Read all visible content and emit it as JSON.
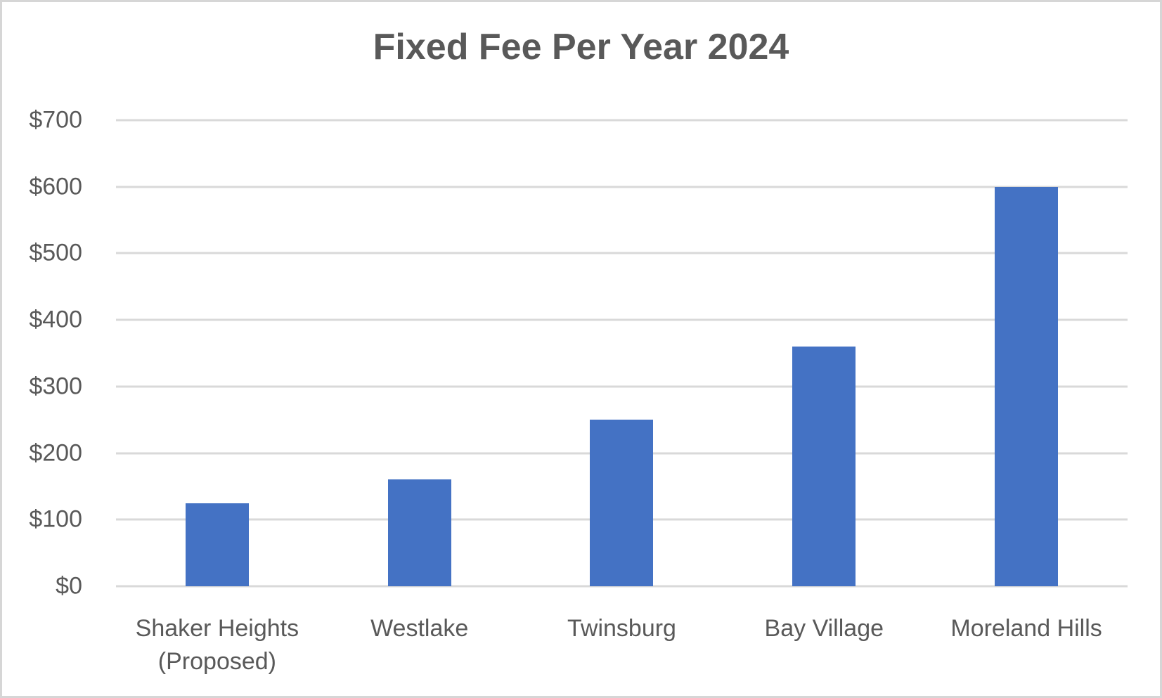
{
  "chart": {
    "title": "Fixed Fee Per Year 2024"
  },
  "chart_data": {
    "type": "bar",
    "title": "Fixed Fee Per Year 2024",
    "categories": [
      "Shaker Heights (Proposed)",
      "Westlake",
      "Twinsburg",
      "Bay Village",
      "Moreland Hills"
    ],
    "values": [
      125,
      160,
      250,
      360,
      600
    ],
    "xlabel": "",
    "ylabel": "",
    "ylim": [
      0,
      700
    ],
    "yticks": [
      {
        "value": 0,
        "label": "$0"
      },
      {
        "value": 100,
        "label": "$100"
      },
      {
        "value": 200,
        "label": "$200"
      },
      {
        "value": 300,
        "label": "$300"
      },
      {
        "value": 400,
        "label": "$400"
      },
      {
        "value": 500,
        "label": "$500"
      },
      {
        "value": 600,
        "label": "$600"
      },
      {
        "value": 700,
        "label": "$700"
      }
    ],
    "grid": true,
    "legend": false,
    "colors": {
      "bar": "#4472C4",
      "gridline": "#D9D9D9",
      "text": "#595959",
      "background": "#FFFFFF",
      "border": "#D6D6D6"
    }
  }
}
